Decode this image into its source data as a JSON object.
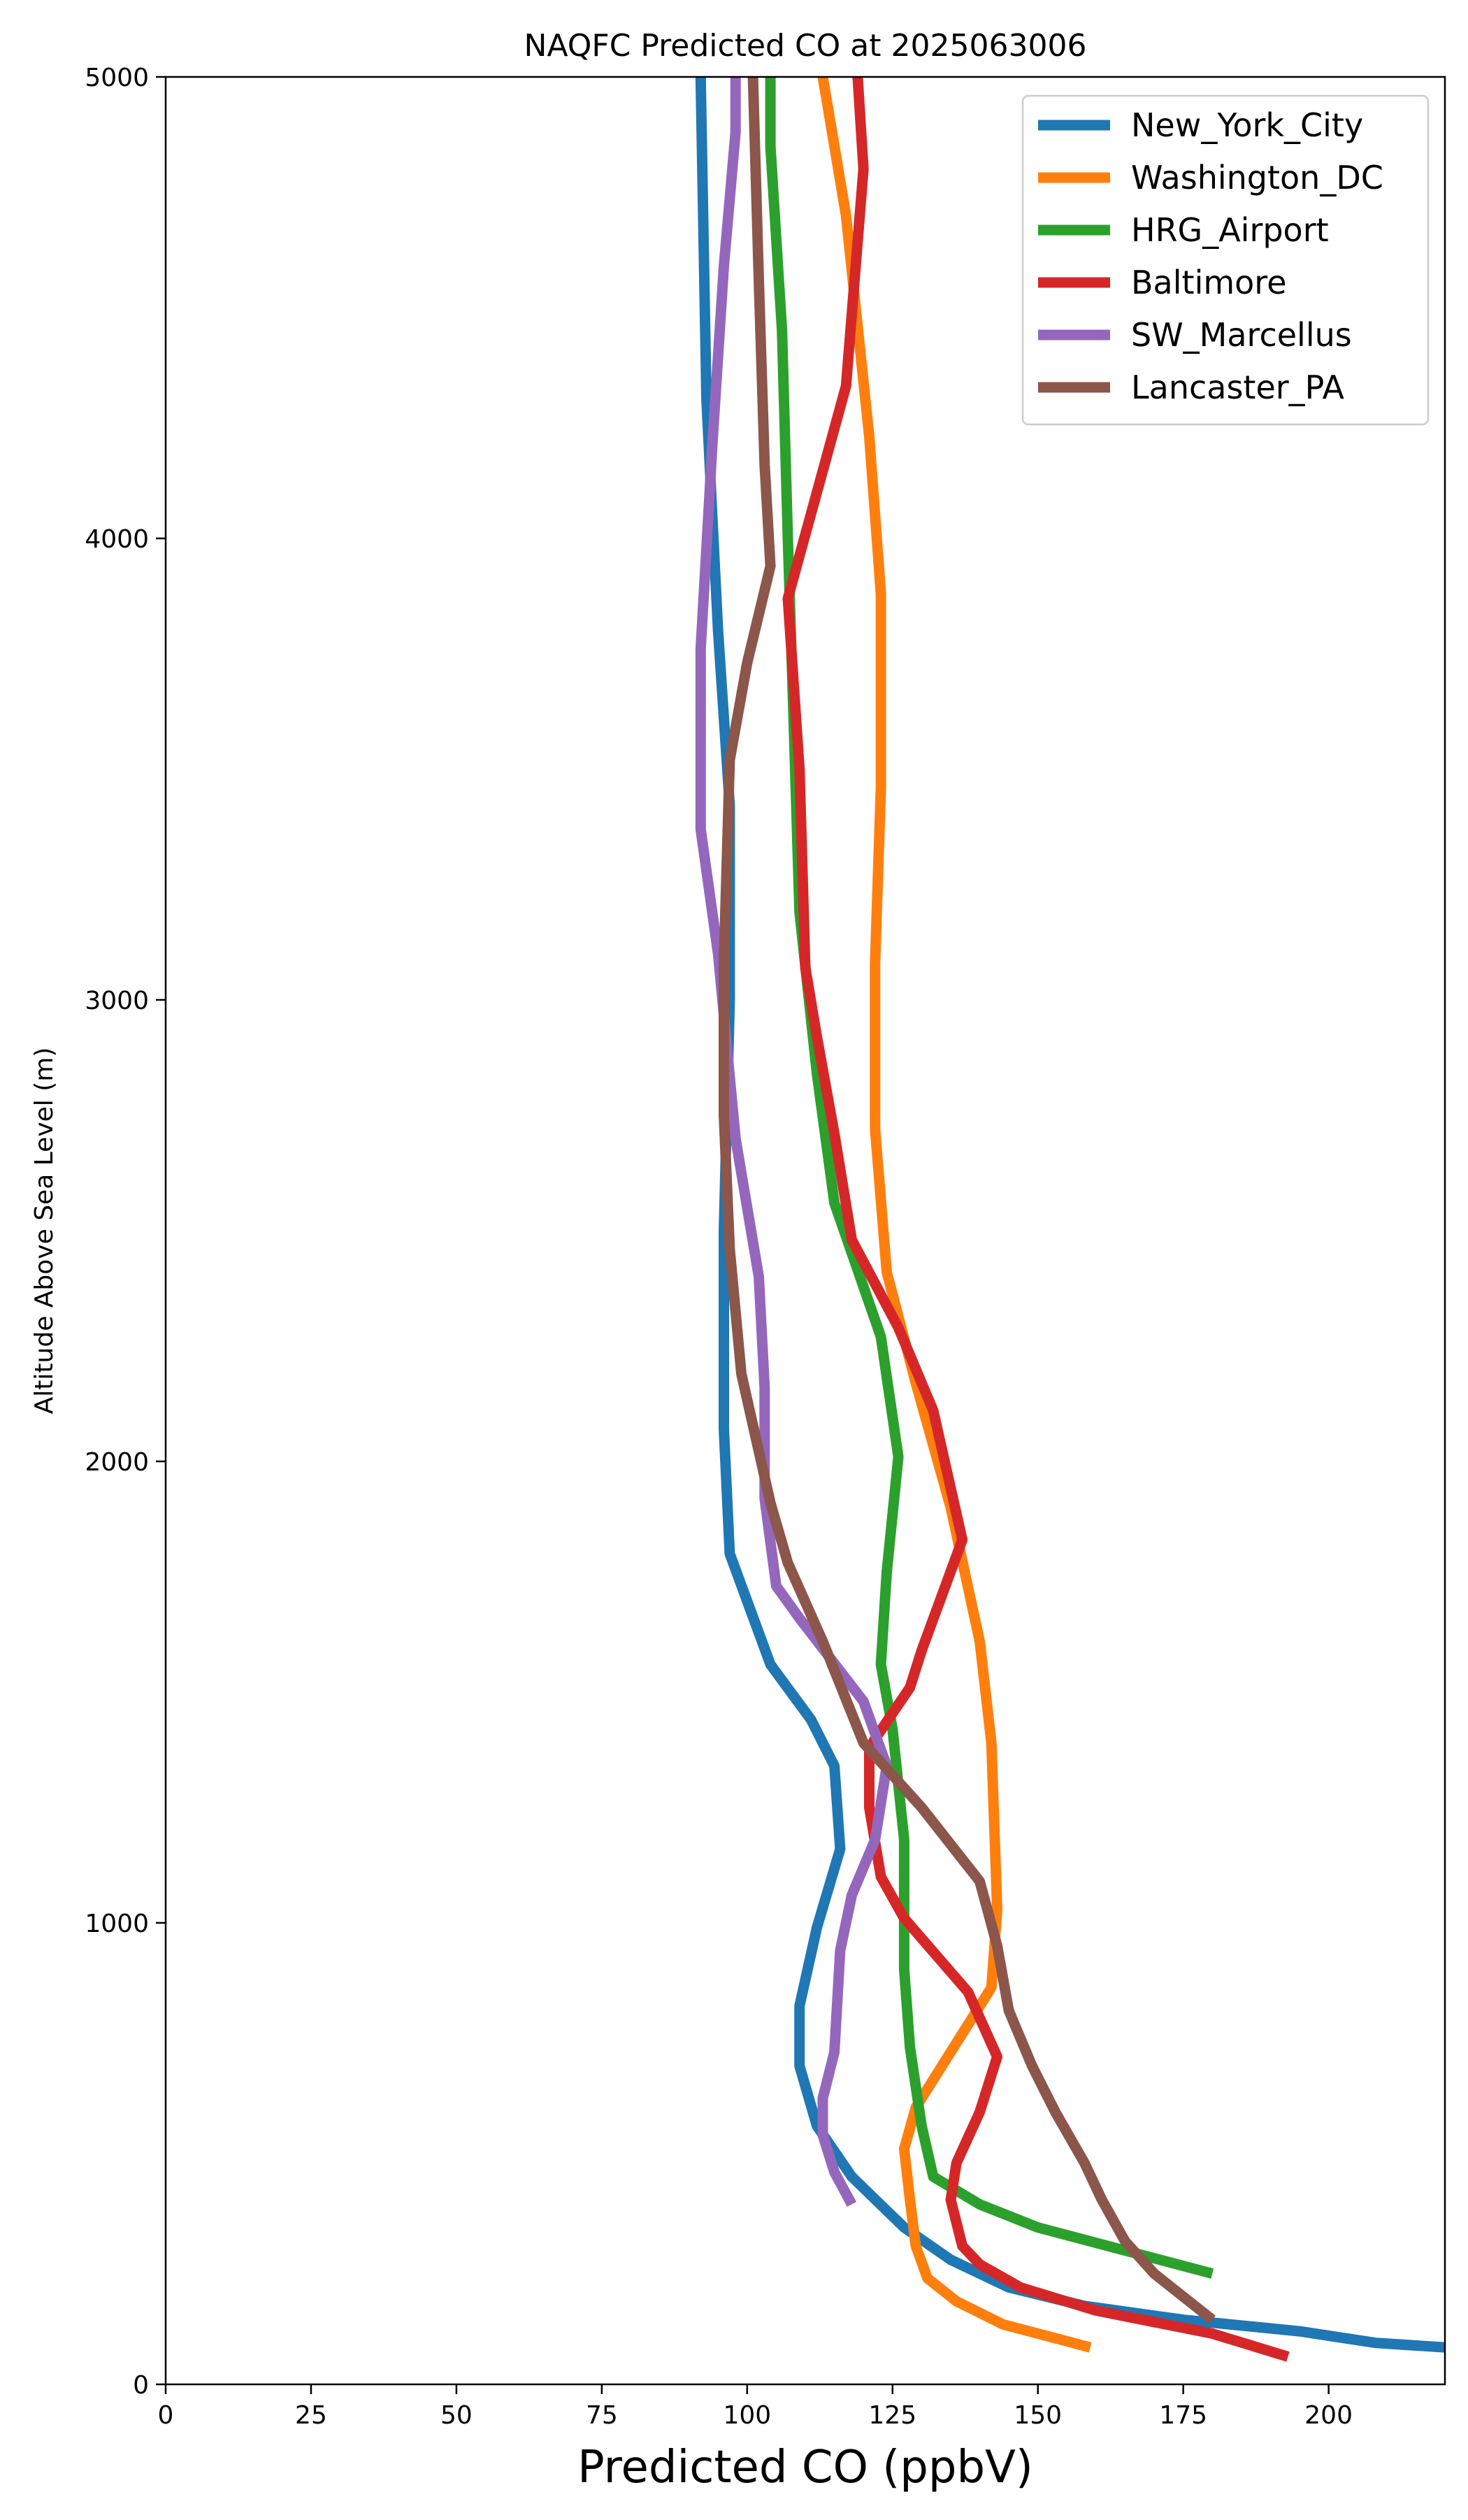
{
  "chart_data": {
    "type": "line",
    "title": "NAQFC Predicted CO at 2025063006",
    "xlabel": "Predicted CO (ppbV)",
    "ylabel": "Altitude Above Sea Level (m)",
    "xlim": [
      0,
      220
    ],
    "ylim": [
      0,
      5000
    ],
    "xticks": [
      0,
      25,
      50,
      75,
      100,
      125,
      150,
      175,
      200
    ],
    "yticks": [
      0,
      1000,
      2000,
      3000,
      4000,
      5000
    ],
    "grid": false,
    "legend": "top-right",
    "series": [
      {
        "name": "New_York_City",
        "color": "#1f77b4",
        "points": [
          [
            220,
            80
          ],
          [
            208,
            90
          ],
          [
            195,
            115
          ],
          [
            175,
            140
          ],
          [
            158,
            170
          ],
          [
            145,
            210
          ],
          [
            135,
            270
          ],
          [
            127,
            340
          ],
          [
            118,
            450
          ],
          [
            112,
            560
          ],
          [
            109,
            690
          ],
          [
            109,
            820
          ],
          [
            112,
            990
          ],
          [
            116,
            1160
          ],
          [
            115,
            1340
          ],
          [
            111,
            1440
          ],
          [
            104,
            1560
          ],
          [
            97,
            1800
          ],
          [
            96,
            2070
          ],
          [
            96,
            2500
          ],
          [
            97,
            3000
          ],
          [
            97,
            3420
          ],
          [
            95,
            3800
          ],
          [
            93,
            4300
          ],
          [
            92,
            5000
          ]
        ]
      },
      {
        "name": "Washington_DC",
        "color": "#ff7f0e",
        "points": [
          [
            159,
            80
          ],
          [
            150,
            110
          ],
          [
            144,
            130
          ],
          [
            136,
            180
          ],
          [
            131,
            230
          ],
          [
            129,
            300
          ],
          [
            128,
            400
          ],
          [
            127,
            510
          ],
          [
            129,
            600
          ],
          [
            134,
            700
          ],
          [
            138,
            780
          ],
          [
            142,
            860
          ],
          [
            143,
            1030
          ],
          [
            142,
            1390
          ],
          [
            140,
            1610
          ],
          [
            135,
            1900
          ],
          [
            129,
            2170
          ],
          [
            124,
            2410
          ],
          [
            122,
            2720
          ],
          [
            122,
            3080
          ],
          [
            123,
            3460
          ],
          [
            123,
            3880
          ],
          [
            121,
            4220
          ],
          [
            117,
            4700
          ],
          [
            113,
            5000
          ]
        ]
      },
      {
        "name": "HRG_Airport",
        "color": "#2ca02c",
        "points": [
          [
            180,
            240
          ],
          [
            165,
            290
          ],
          [
            150,
            340
          ],
          [
            140,
            390
          ],
          [
            132,
            450
          ],
          [
            130,
            560
          ],
          [
            128,
            730
          ],
          [
            127,
            900
          ],
          [
            127,
            1180
          ],
          [
            125,
            1420
          ],
          [
            123,
            1560
          ],
          [
            124,
            1760
          ],
          [
            126,
            2010
          ],
          [
            123,
            2270
          ],
          [
            115,
            2560
          ],
          [
            112,
            2840
          ],
          [
            109,
            3190
          ],
          [
            108,
            3600
          ],
          [
            107,
            4000
          ],
          [
            106,
            4450
          ],
          [
            104,
            4850
          ],
          [
            104,
            5000
          ]
        ]
      },
      {
        "name": "Baltimore",
        "color": "#d62728",
        "points": [
          [
            193,
            60
          ],
          [
            180,
            110
          ],
          [
            160,
            160
          ],
          [
            147,
            210
          ],
          [
            140,
            260
          ],
          [
            137,
            300
          ],
          [
            135,
            400
          ],
          [
            136,
            480
          ],
          [
            140,
            590
          ],
          [
            143,
            710
          ],
          [
            138,
            850
          ],
          [
            127,
            1010
          ],
          [
            123,
            1100
          ],
          [
            121,
            1250
          ],
          [
            121,
            1380
          ],
          [
            128,
            1510
          ],
          [
            130,
            1590
          ],
          [
            137,
            1830
          ],
          [
            132,
            2110
          ],
          [
            126,
            2290
          ],
          [
            118,
            2480
          ],
          [
            115,
            2710
          ],
          [
            112,
            2920
          ],
          [
            110,
            3070
          ],
          [
            109,
            3500
          ],
          [
            107,
            3870
          ],
          [
            117,
            4330
          ],
          [
            120,
            4800
          ],
          [
            119,
            5000
          ]
        ]
      },
      {
        "name": "SW_Marcellus",
        "color": "#9467bd",
        "points": [
          [
            118,
            390
          ],
          [
            115,
            460
          ],
          [
            113,
            540
          ],
          [
            113,
            620
          ],
          [
            115,
            720
          ],
          [
            116,
            940
          ],
          [
            118,
            1060
          ],
          [
            122,
            1180
          ],
          [
            124,
            1340
          ],
          [
            120,
            1480
          ],
          [
            109,
            1660
          ],
          [
            105,
            1730
          ],
          [
            103,
            1920
          ],
          [
            103,
            2160
          ],
          [
            102,
            2400
          ],
          [
            98,
            2700
          ],
          [
            95,
            3100
          ],
          [
            92,
            3370
          ],
          [
            92,
            3760
          ],
          [
            94,
            4200
          ],
          [
            96,
            4590
          ],
          [
            98,
            4880
          ],
          [
            98,
            5000
          ]
        ]
      },
      {
        "name": "Lancaster_PA",
        "color": "#8c564b",
        "points": [
          [
            180,
            140
          ],
          [
            170,
            240
          ],
          [
            165,
            310
          ],
          [
            161,
            400
          ],
          [
            158,
            480
          ],
          [
            153,
            590
          ],
          [
            149,
            690
          ],
          [
            145,
            810
          ],
          [
            143,
            950
          ],
          [
            140,
            1090
          ],
          [
            130,
            1250
          ],
          [
            120,
            1390
          ],
          [
            113,
            1610
          ],
          [
            107,
            1780
          ],
          [
            104,
            1910
          ],
          [
            99,
            2190
          ],
          [
            97,
            2460
          ],
          [
            96,
            2750
          ],
          [
            96,
            3080
          ],
          [
            97,
            3520
          ],
          [
            100,
            3730
          ],
          [
            104,
            3940
          ],
          [
            103,
            4160
          ],
          [
            102,
            4560
          ],
          [
            101,
            5000
          ]
        ]
      }
    ]
  }
}
